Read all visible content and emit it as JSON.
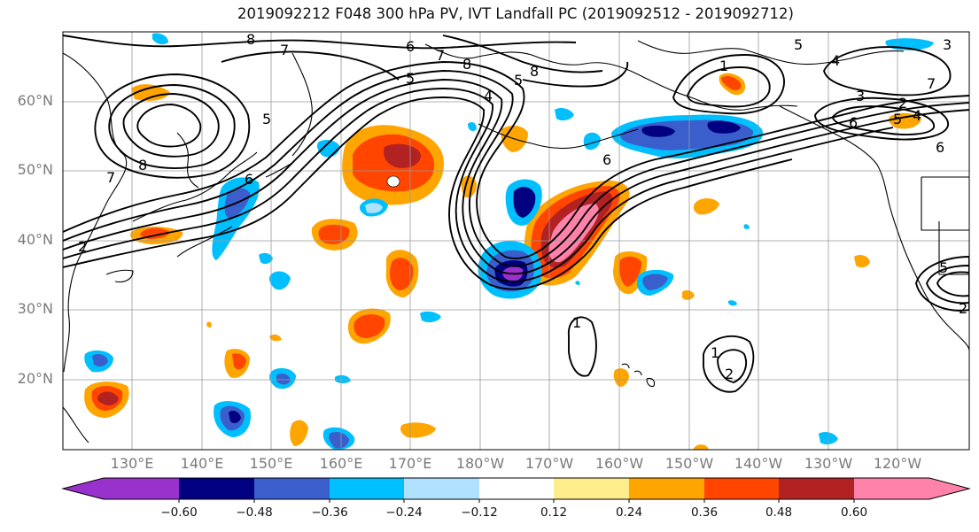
{
  "title": "2019092212 F048 300 hPa PV, IVT Landfall PC (2019092512 - 2019092712)",
  "lat_labels": [
    "60°N",
    "50°N",
    "40°N",
    "30°N",
    "20°N"
  ],
  "lon_labels": [
    "130°E",
    "140°E",
    "150°E",
    "160°E",
    "170°E",
    "180°W",
    "170°W",
    "160°W",
    "150°W",
    "140°W",
    "130°W",
    "120°W"
  ],
  "colorbar": {
    "ticks": [
      "−0.60",
      "−0.48",
      "−0.36",
      "−0.24",
      "−0.12",
      "0.12",
      "0.24",
      "0.36",
      "0.48",
      "0.60"
    ],
    "colors": [
      "#9932cc",
      "#000080",
      "#3a5fcd",
      "#00bfff",
      "#b0e2ff",
      "#ffffff",
      "#ffec8b",
      "#ffa500",
      "#ff4500",
      "#b22222",
      "#ff82ab"
    ]
  },
  "contour_labels": {
    "a": "8",
    "b": "7",
    "c": "6",
    "d": "7",
    "e": "8",
    "f": "8",
    "g": "5",
    "h": "4",
    "i": "1",
    "j": "5",
    "k": "3",
    "l": "4",
    "m": "2",
    "n": "6",
    "o": "5",
    "p": "4",
    "q": "6",
    "r": "8",
    "s": "7",
    "t": "6",
    "u": "5",
    "v": "3",
    "w": "2",
    "x": "1",
    "y": "1",
    "z": "2",
    "aa": "2",
    "ab": "6",
    "ac": "7",
    "ad": "5",
    "ae": "5"
  },
  "icons": {
    "coastline": "coastline-outline",
    "graticule": "lat-lon-grid"
  }
}
